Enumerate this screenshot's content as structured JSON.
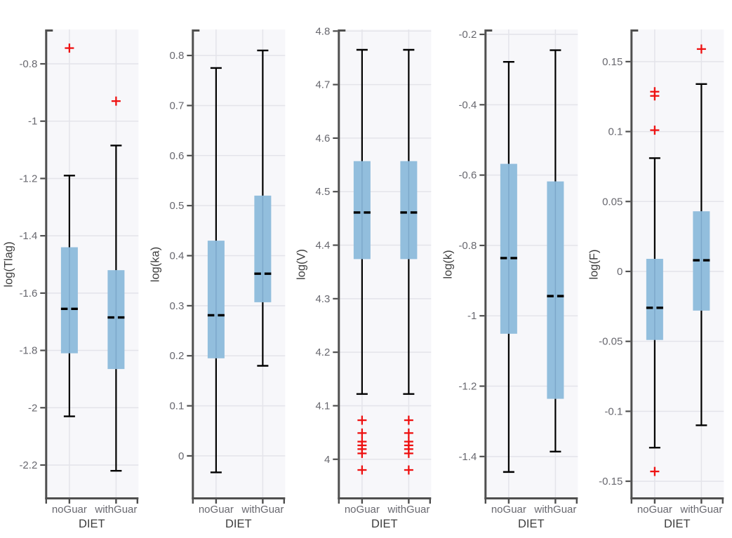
{
  "figure": {
    "title": "",
    "xlabel": "DIET",
    "categories": [
      "noGuar",
      "withGuar"
    ]
  },
  "colors": {
    "box_fill": "#92bedd",
    "box_grid_tint": "#7da8cb",
    "median": "#000000",
    "whisker": "#000000",
    "outlier": "#ee1111",
    "axis": "#4f4f4f",
    "tick_label": "#68686f",
    "axis_label": "#3d3d3d",
    "grid": "#e4e4ea",
    "plot_bg": "#f7f7fa"
  },
  "chart_data": [
    {
      "type": "boxplot",
      "ylabel": "log(Tlag)",
      "xlabel": "DIET",
      "categories": [
        "noGuar",
        "withGuar"
      ],
      "ylim": [
        -2.32,
        -0.68
      ],
      "yticks": [
        -0.8,
        -1,
        -1.2,
        -1.4,
        -1.6,
        -1.8,
        -2,
        -2.2
      ],
      "ytick_labels": [
        "-0.8",
        "-1",
        "-1.2",
        "-1.4",
        "-1.6",
        "-1.8",
        "-2",
        "-2.2"
      ],
      "series": [
        {
          "category": "noGuar",
          "whisker_low": -2.03,
          "q1": -1.81,
          "median": -1.655,
          "q3": -1.44,
          "whisker_high": -1.19,
          "outliers": [
            -0.745
          ]
        },
        {
          "category": "withGuar",
          "whisker_low": -2.22,
          "q1": -1.865,
          "median": -1.685,
          "q3": -1.52,
          "whisker_high": -1.085,
          "outliers": [
            -0.93
          ]
        }
      ]
    },
    {
      "type": "boxplot",
      "ylabel": "log(ka)",
      "xlabel": "DIET",
      "categories": [
        "noGuar",
        "withGuar"
      ],
      "ylim": [
        -0.087,
        0.852
      ],
      "yticks": [
        0.8,
        0.7,
        0.6,
        0.5,
        0.4,
        0.3,
        0.2,
        0.1,
        0
      ],
      "ytick_labels": [
        "0.8",
        "0.7",
        "0.6",
        "0.5",
        "0.4",
        "0.3",
        "0.2",
        "0.1",
        "0"
      ],
      "series": [
        {
          "category": "noGuar",
          "whisker_low": -0.033,
          "q1": 0.195,
          "median": 0.281,
          "q3": 0.43,
          "whisker_high": 0.775,
          "outliers": []
        },
        {
          "category": "withGuar",
          "whisker_low": 0.18,
          "q1": 0.307,
          "median": 0.364,
          "q3": 0.52,
          "whisker_high": 0.81,
          "outliers": []
        }
      ]
    },
    {
      "type": "boxplot",
      "ylabel": "log(V)",
      "xlabel": "DIET",
      "categories": [
        "noGuar",
        "withGuar"
      ],
      "ylim": [
        3.925,
        4.803
      ],
      "yticks": [
        4.8,
        4.7,
        4.6,
        4.5,
        4.4,
        4.3,
        4.2,
        4.1,
        4
      ],
      "ytick_labels": [
        "4.8",
        "4.7",
        "4.6",
        "4.5",
        "4.4",
        "4.3",
        "4.2",
        "4.1",
        "4"
      ],
      "series": [
        {
          "category": "noGuar",
          "whisker_low": 4.122,
          "q1": 4.374,
          "median": 4.461,
          "q3": 4.557,
          "whisker_high": 4.765,
          "outliers": [
            4.073,
            4.049,
            4.033,
            4.026,
            4.019,
            4.011,
            3.98
          ]
        },
        {
          "category": "withGuar",
          "whisker_low": 4.122,
          "q1": 4.374,
          "median": 4.461,
          "q3": 4.557,
          "whisker_high": 4.765,
          "outliers": [
            4.073,
            4.049,
            4.033,
            4.026,
            4.019,
            4.011,
            3.98
          ]
        }
      ]
    },
    {
      "type": "boxplot",
      "ylabel": "log(k)",
      "xlabel": "DIET",
      "categories": [
        "noGuar",
        "withGuar"
      ],
      "ylim": [
        -1.522,
        -0.186
      ],
      "yticks": [
        -0.2,
        -0.4,
        -0.6,
        -0.8,
        -1,
        -1.2,
        -1.4
      ],
      "ytick_labels": [
        "-0.2",
        "-0.4",
        "-0.6",
        "-0.8",
        "-1",
        "-1.2",
        "-1.4"
      ],
      "series": [
        {
          "category": "noGuar",
          "whisker_low": -1.444,
          "q1": -1.051,
          "median": -0.836,
          "q3": -0.568,
          "whisker_high": -0.278,
          "outliers": []
        },
        {
          "category": "withGuar",
          "whisker_low": -1.386,
          "q1": -1.236,
          "median": -0.944,
          "q3": -0.618,
          "whisker_high": -0.245,
          "outliers": []
        }
      ]
    },
    {
      "type": "boxplot",
      "ylabel": "log(F)",
      "xlabel": "DIET",
      "categories": [
        "noGuar",
        "withGuar"
      ],
      "ylim": [
        -0.163,
        0.173
      ],
      "yticks": [
        0.15,
        0.1,
        0.05,
        0,
        -0.05,
        -0.1,
        -0.15
      ],
      "ytick_labels": [
        "0.15",
        "0.1",
        "0.05",
        "0",
        "-0.05",
        "-0.1",
        "-0.15"
      ],
      "series": [
        {
          "category": "noGuar",
          "whisker_low": -0.126,
          "q1": -0.049,
          "median": -0.026,
          "q3": 0.009,
          "whisker_high": 0.081,
          "outliers": [
            0.1285,
            0.1255,
            0.101,
            -0.143
          ]
        },
        {
          "category": "withGuar",
          "whisker_low": -0.11,
          "q1": -0.028,
          "median": 0.008,
          "q3": 0.043,
          "whisker_high": 0.134,
          "outliers": [
            0.159
          ]
        }
      ]
    }
  ]
}
